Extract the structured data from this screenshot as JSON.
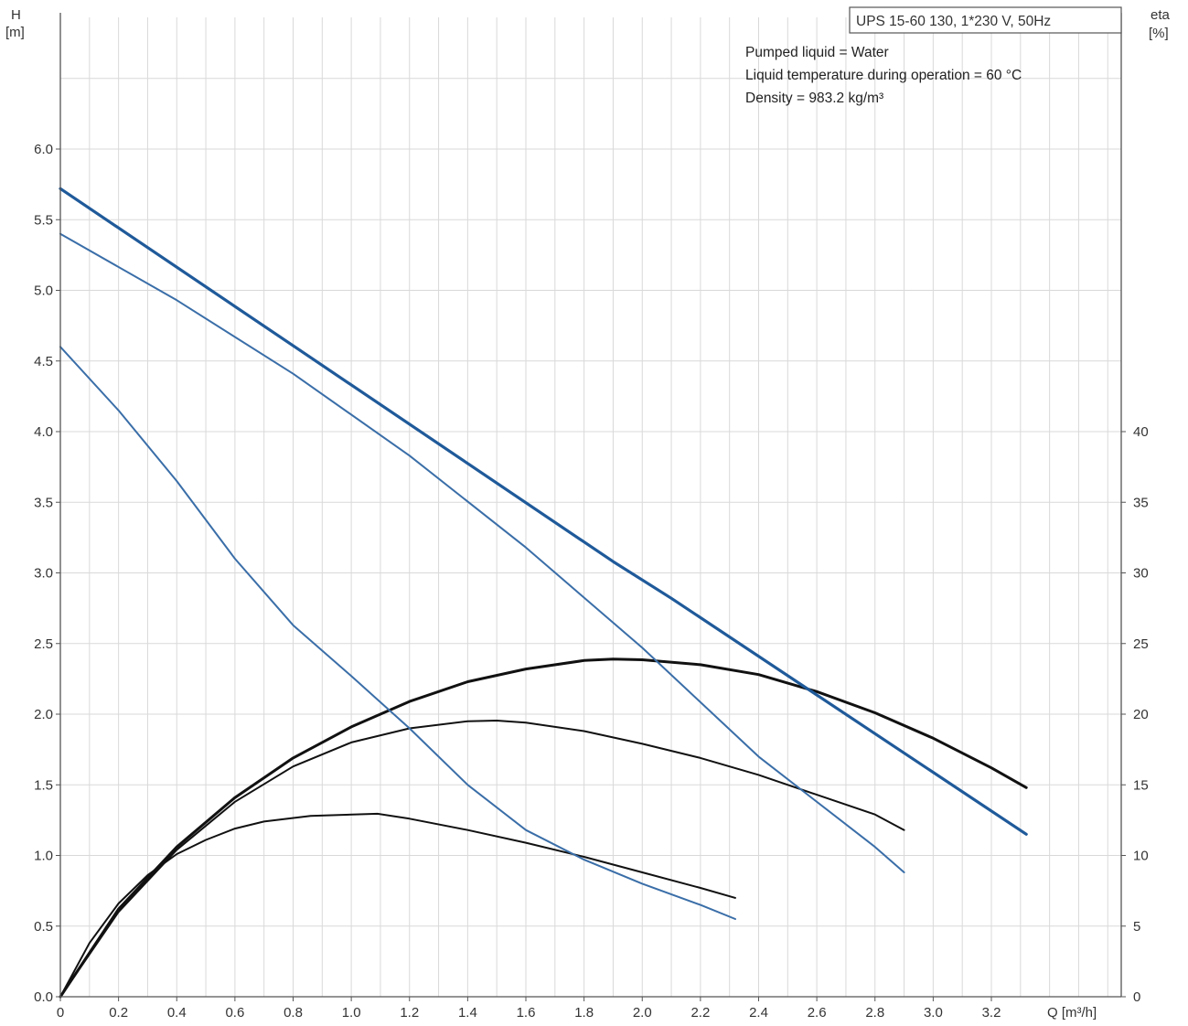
{
  "chart_data": {
    "type": "line",
    "caption": "UPS 15-60 130, 1*230 V, 50Hz",
    "notes": [
      "Pumped liquid = Water",
      "Liquid temperature during operation = 60 °C",
      "Density = 983.2 kg/m³"
    ],
    "x_axis": {
      "label": "Q [m³/h]",
      "range": [
        0,
        3.4
      ],
      "ticks": [
        "0",
        "0.2",
        "0.4",
        "0.6",
        "0.8",
        "1.0",
        "1.2",
        "1.4",
        "1.6",
        "1.8",
        "2.0",
        "2.2",
        "2.4",
        "2.6",
        "2.8",
        "3.0",
        "3.2"
      ]
    },
    "y_axis_left": {
      "label_line1": "H",
      "label_line2": "[m]",
      "range": [
        0,
        6.5
      ],
      "ticks": [
        "0.0",
        "0.5",
        "1.0",
        "1.5",
        "2.0",
        "2.5",
        "3.0",
        "3.5",
        "4.0",
        "4.5",
        "5.0",
        "5.5",
        "6.0"
      ]
    },
    "y_axis_right": {
      "label_line1": "eta",
      "label_line2": "[%]",
      "range": [
        0,
        65
      ],
      "ticks": [
        "0",
        "5",
        "10",
        "15",
        "20",
        "25",
        "30",
        "35",
        "40"
      ]
    },
    "grid": true,
    "head_series": [
      {
        "speed": 3,
        "color": "#1f5a9a",
        "width": 3.2,
        "x": [
          0,
          1.9,
          2.1,
          3.32
        ],
        "y": [
          5.72,
          3.08,
          2.82,
          1.15
        ]
      },
      {
        "speed": 2,
        "color": "#3a6ea8",
        "width": 2.0,
        "x": [
          0,
          0.4,
          0.8,
          1.2,
          1.6,
          2.0,
          2.4,
          2.8,
          2.9
        ],
        "y": [
          5.4,
          4.93,
          4.41,
          3.83,
          3.18,
          2.47,
          1.7,
          1.06,
          0.88
        ]
      },
      {
        "speed": 1,
        "color": "#3a6ea8",
        "width": 2.0,
        "x": [
          0,
          0.2,
          0.4,
          0.6,
          0.8,
          1.0,
          1.2,
          1.4,
          1.6,
          1.8,
          2.0,
          2.2,
          2.32
        ],
        "y": [
          4.6,
          4.15,
          3.65,
          3.1,
          2.63,
          2.27,
          1.9,
          1.5,
          1.18,
          0.97,
          0.8,
          0.65,
          0.55
        ]
      }
    ],
    "efficiency_series": [
      {
        "speed": 3,
        "color": "#111111",
        "width": 3.0,
        "x": [
          0,
          0.2,
          0.4,
          0.6,
          0.8,
          1.0,
          1.2,
          1.4,
          1.6,
          1.8,
          1.9,
          2.0,
          2.2,
          2.4,
          2.6,
          2.8,
          3.0,
          3.2,
          3.32
        ],
        "y": [
          0,
          6.2,
          10.6,
          14.1,
          16.9,
          19.1,
          20.9,
          22.3,
          23.2,
          23.8,
          23.9,
          23.85,
          23.5,
          22.8,
          21.6,
          20.1,
          18.3,
          16.2,
          14.8
        ]
      },
      {
        "speed": 2,
        "color": "#111111",
        "width": 2.0,
        "x": [
          0,
          0.2,
          0.4,
          0.6,
          0.8,
          1.0,
          1.2,
          1.4,
          1.5,
          1.6,
          1.8,
          2.0,
          2.2,
          2.4,
          2.6,
          2.8,
          2.9
        ],
        "y": [
          0,
          6.0,
          10.4,
          13.8,
          16.3,
          18.0,
          19.0,
          19.5,
          19.55,
          19.4,
          18.8,
          17.9,
          16.9,
          15.7,
          14.3,
          12.9,
          11.8
        ]
      },
      {
        "speed": 1,
        "color": "#111111",
        "width": 2.0,
        "x": [
          0,
          0.1,
          0.2,
          0.3,
          0.4,
          0.5,
          0.6,
          0.7,
          0.86,
          1.09,
          1.2,
          1.4,
          1.6,
          1.8,
          2.0,
          2.2,
          2.32
        ],
        "y": [
          0,
          3.8,
          6.6,
          8.6,
          10.1,
          11.1,
          11.9,
          12.4,
          12.8,
          12.95,
          12.6,
          11.8,
          10.9,
          9.9,
          8.8,
          7.7,
          7.0
        ]
      }
    ]
  }
}
